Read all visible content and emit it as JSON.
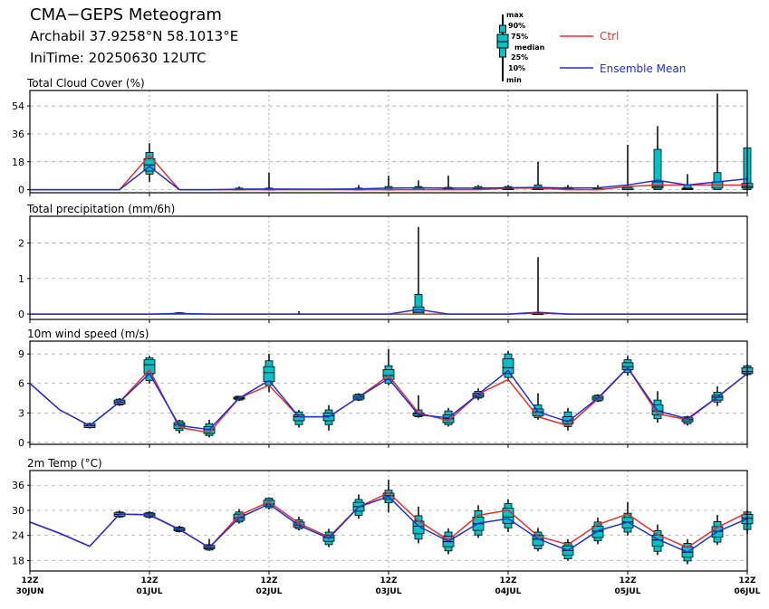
{
  "header": {
    "title": "CMA−GEPS Meteogram",
    "location": "Archabil 37.9258°N 58.1013°E",
    "init_time": "IniTime: 20250630 12UTC"
  },
  "legend": {
    "ctrl": "Ctrl",
    "mean": "Ensemble Mean",
    "box_max": "max",
    "box_90": "90%",
    "box_75": "75%",
    "box_median": "median",
    "box_25": "25%",
    "box_10": "10%",
    "box_min": "min"
  },
  "colors": {
    "ctrl": "#e03030",
    "mean": "#2030d0",
    "box_fill": "#00c0c8",
    "grid": "#999999"
  },
  "x_axis": {
    "ticks": [
      {
        "t": 0,
        "top": "12Z",
        "bottom": "30JUN"
      },
      {
        "t": 24,
        "top": "12Z",
        "bottom": "01JUL"
      },
      {
        "t": 48,
        "top": "12Z",
        "bottom": "02JUL"
      },
      {
        "t": 72,
        "top": "12Z",
        "bottom": "03JUL"
      },
      {
        "t": 96,
        "top": "12Z",
        "bottom": "04JUL"
      },
      {
        "t": 120,
        "top": "12Z",
        "bottom": "05JUL"
      },
      {
        "t": 144,
        "top": "12Z",
        "bottom": "06JUL"
      }
    ]
  },
  "chart_data": [
    {
      "type": "box",
      "title": "Total Cloud Cover (%)",
      "ylim": [
        -2,
        64
      ],
      "yticks": [
        0,
        18,
        36,
        54
      ],
      "lead_hours": [
        0,
        6,
        12,
        18,
        24,
        30,
        36,
        42,
        48,
        54,
        60,
        66,
        72,
        78,
        84,
        90,
        96,
        102,
        108,
        114,
        120,
        126,
        132,
        138,
        144
      ],
      "ctrl": [
        0,
        0,
        0,
        0,
        22,
        0,
        0,
        0,
        0,
        0,
        0,
        0,
        0,
        0,
        0,
        0,
        1,
        1,
        0,
        0,
        2,
        3,
        3,
        3,
        3
      ],
      "mean": [
        0,
        0,
        0,
        0,
        15,
        0,
        0,
        0.3,
        0.4,
        0.3,
        0.3,
        0.5,
        1,
        1.2,
        1,
        1,
        1.2,
        1.4,
        1,
        1.2,
        3,
        6,
        3,
        5,
        7
      ],
      "boxes": [
        null,
        null,
        null,
        null,
        [
          5,
          10,
          12,
          16,
          20,
          24,
          30
        ],
        null,
        null,
        [
          0,
          0,
          0,
          0,
          0,
          1,
          2
        ],
        [
          0,
          0,
          0,
          0,
          0,
          1,
          11
        ],
        null,
        null,
        [
          0,
          0,
          0,
          0,
          0,
          1,
          3
        ],
        [
          0,
          0,
          0,
          0,
          0,
          2,
          9
        ],
        [
          0,
          0,
          0,
          0,
          1,
          2,
          6
        ],
        [
          0,
          0,
          0,
          0,
          0.5,
          1.5,
          9
        ],
        [
          0,
          0,
          0,
          0.5,
          1,
          2,
          3
        ],
        [
          0,
          0,
          0,
          0.5,
          1,
          2,
          3
        ],
        [
          0,
          0,
          0,
          0.5,
          1,
          3,
          18
        ],
        [
          0,
          0,
          0,
          0,
          0.5,
          1.5,
          3
        ],
        [
          0,
          0,
          0,
          0,
          0.5,
          1,
          3
        ],
        [
          0,
          0,
          0,
          0,
          1,
          2,
          29
        ],
        [
          0,
          0,
          1,
          2,
          5,
          26,
          41
        ],
        [
          0,
          0,
          0,
          0.5,
          1,
          3,
          10
        ],
        [
          0,
          0,
          1,
          3,
          5,
          11,
          62
        ],
        [
          0,
          0,
          1,
          2,
          4,
          27,
          27
        ]
      ]
    },
    {
      "type": "box",
      "title": "Total precipitation (mm/6h)",
      "ylim": [
        -0.15,
        2.75
      ],
      "yticks": [
        0,
        1,
        2
      ],
      "lead_hours": [
        0,
        6,
        12,
        18,
        24,
        30,
        36,
        42,
        48,
        54,
        60,
        66,
        72,
        78,
        84,
        90,
        96,
        102,
        108,
        114,
        120,
        126,
        132,
        138,
        144
      ],
      "ctrl": [
        0,
        0,
        0,
        0,
        0,
        0,
        0,
        0,
        0,
        0,
        0,
        0,
        0,
        0,
        0,
        0,
        0,
        0.03,
        0,
        0,
        0,
        0,
        0,
        0,
        0
      ],
      "mean": [
        0,
        0,
        0,
        0,
        0,
        0.02,
        0,
        0,
        0,
        0,
        0,
        0,
        0,
        0.13,
        0,
        0,
        0,
        0.05,
        0,
        0,
        0,
        0,
        0,
        0,
        0
      ],
      "boxes": [
        null,
        null,
        null,
        null,
        null,
        [
          0,
          0,
          0,
          0.02,
          0.03,
          0.04,
          0.05
        ],
        null,
        null,
        null,
        [
          0,
          0,
          0,
          0,
          0,
          0,
          0.08
        ],
        null,
        null,
        null,
        [
          0,
          0,
          0,
          0.05,
          0.2,
          0.55,
          2.45
        ],
        null,
        null,
        null,
        [
          0,
          0,
          0,
          0,
          0,
          0.02,
          1.6
        ],
        null,
        null,
        null,
        null,
        null,
        null,
        null
      ]
    },
    {
      "type": "box",
      "title": "10m wind speed (m/s)",
      "ylim": [
        -0.2,
        10.3
      ],
      "yticks": [
        0,
        3,
        6,
        9
      ],
      "lead_hours": [
        0,
        6,
        12,
        18,
        24,
        30,
        36,
        42,
        48,
        54,
        60,
        66,
        72,
        78,
        84,
        90,
        96,
        102,
        108,
        114,
        120,
        126,
        132,
        138,
        144
      ],
      "ctrl": [
        6.0,
        3.3,
        1.7,
        4.1,
        7.4,
        1.5,
        1.0,
        4.5,
        5.8,
        2.6,
        2.6,
        4.6,
        6.8,
        3.0,
        2.2,
        4.9,
        6.4,
        2.6,
        1.7,
        4.4,
        7.6,
        2.9,
        2.3,
        4.6,
        7.0
      ],
      "mean": [
        6.0,
        3.3,
        1.7,
        4.1,
        7.0,
        1.7,
        1.3,
        4.5,
        6.3,
        2.6,
        2.6,
        4.6,
        6.5,
        2.8,
        2.5,
        4.9,
        7.3,
        3.1,
        2.1,
        4.5,
        7.6,
        3.2,
        2.4,
        4.6,
        7.0
      ],
      "boxes": [
        null,
        null,
        [
          1.4,
          1.5,
          1.5,
          1.7,
          1.9,
          1.9,
          2.0
        ],
        [
          3.7,
          3.8,
          3.9,
          4.1,
          4.3,
          4.4,
          4.5
        ],
        [
          6.0,
          6.3,
          7.0,
          7.9,
          8.4,
          8.6,
          8.8
        ],
        [
          0.9,
          1.2,
          1.4,
          1.8,
          2.0,
          2.2,
          2.3
        ],
        [
          0.5,
          0.7,
          0.9,
          1.3,
          1.6,
          1.9,
          2.3
        ],
        [
          4.2,
          4.3,
          4.4,
          4.5,
          4.6,
          4.7,
          4.7
        ],
        [
          5.1,
          5.8,
          6.2,
          7.1,
          7.7,
          8.3,
          9.0
        ],
        [
          1.5,
          1.8,
          2.2,
          2.6,
          2.8,
          3.1,
          3.3
        ],
        [
          1.2,
          1.8,
          2.2,
          2.7,
          3.0,
          3.3,
          3.8
        ],
        [
          4.2,
          4.3,
          4.4,
          4.6,
          4.8,
          4.9,
          5.0
        ],
        [
          5.8,
          6.0,
          6.4,
          6.8,
          7.4,
          7.8,
          9.5
        ],
        [
          2.5,
          2.6,
          2.7,
          2.9,
          3.0,
          3.3,
          4.8
        ],
        [
          1.6,
          1.8,
          2.0,
          2.4,
          2.8,
          3.2,
          3.5
        ],
        [
          4.3,
          4.5,
          4.6,
          4.8,
          5.0,
          5.2,
          5.5
        ],
        [
          6.2,
          6.6,
          7.0,
          7.6,
          8.5,
          9.0,
          9.3
        ],
        [
          2.3,
          2.5,
          2.7,
          3.1,
          3.4,
          3.8,
          5.0
        ],
        [
          1.2,
          1.6,
          1.9,
          2.2,
          2.6,
          3.1,
          3.5
        ],
        [
          4.1,
          4.2,
          4.3,
          4.5,
          4.7,
          4.8,
          4.9
        ],
        [
          6.8,
          7.1,
          7.4,
          7.7,
          8.1,
          8.4,
          8.8
        ],
        [
          2.0,
          2.4,
          2.8,
          3.2,
          3.8,
          4.3,
          5.2
        ],
        [
          1.7,
          1.9,
          2.1,
          2.3,
          2.5,
          2.6,
          2.7
        ],
        [
          3.7,
          4.1,
          4.3,
          4.6,
          4.8,
          5.1,
          5.7
        ],
        [
          6.7,
          6.9,
          7.0,
          7.2,
          7.6,
          7.8,
          7.9
        ]
      ]
    },
    {
      "type": "box",
      "title": "2m Temp (°C)",
      "ylim": [
        15.5,
        39.5
      ],
      "yticks": [
        18,
        24,
        30,
        36
      ],
      "lead_hours": [
        0,
        6,
        12,
        18,
        24,
        30,
        36,
        42,
        48,
        54,
        60,
        66,
        72,
        78,
        84,
        90,
        96,
        102,
        108,
        114,
        120,
        126,
        132,
        138,
        144
      ],
      "ctrl": [
        27.2,
        24.5,
        21.4,
        29.1,
        29.0,
        25.5,
        21.1,
        28.8,
        32.0,
        26.9,
        23.6,
        30.8,
        34.2,
        27.5,
        22.9,
        28.8,
        30.0,
        23.8,
        21.8,
        26.6,
        29.1,
        24.2,
        21.1,
        25.9,
        29.5
      ],
      "mean": [
        27.2,
        24.5,
        21.4,
        29.1,
        28.9,
        25.4,
        21.1,
        28.2,
        31.5,
        26.4,
        23.3,
        30.8,
        33.3,
        26.2,
        22.6,
        26.9,
        28.0,
        23.2,
        20.4,
        25.1,
        27.2,
        23.1,
        20.0,
        24.9,
        28.0
      ],
      "boxes": [
        null,
        null,
        null,
        [
          28.2,
          28.4,
          28.6,
          29.0,
          29.4,
          29.6,
          29.9
        ],
        [
          28.0,
          28.3,
          28.5,
          28.9,
          29.3,
          29.5,
          29.8
        ],
        [
          24.7,
          24.9,
          25.1,
          25.4,
          25.8,
          26.0,
          26.3
        ],
        [
          20.3,
          20.5,
          20.8,
          21.1,
          21.6,
          21.8,
          23.2
        ],
        [
          26.8,
          27.2,
          27.6,
          28.2,
          29.1,
          29.6,
          30.3
        ],
        [
          30.2,
          30.6,
          31.0,
          31.5,
          32.4,
          32.9,
          33.1
        ],
        [
          25.2,
          25.6,
          26.0,
          26.5,
          27.2,
          27.7,
          28.5
        ],
        [
          21.2,
          21.8,
          22.6,
          23.5,
          24.1,
          24.8,
          25.6
        ],
        [
          28.0,
          28.8,
          29.8,
          30.9,
          31.9,
          32.6,
          33.8
        ],
        [
          29.5,
          31.8,
          32.6,
          33.5,
          34.1,
          34.8,
          37.3
        ],
        [
          22.1,
          23.1,
          24.4,
          26.2,
          27.4,
          28.7,
          30.9
        ],
        [
          19.5,
          20.3,
          21.3,
          22.5,
          23.8,
          24.8,
          25.7
        ],
        [
          23.4,
          24.1,
          25.2,
          26.8,
          28.4,
          29.9,
          31.2
        ],
        [
          24.8,
          25.8,
          26.9,
          28.4,
          30.5,
          31.6,
          32.6
        ],
        [
          20.2,
          20.8,
          21.6,
          23.1,
          24.1,
          24.8,
          25.8
        ],
        [
          18.0,
          18.4,
          19.3,
          20.4,
          21.5,
          22.3,
          23.1
        ],
        [
          21.9,
          22.7,
          23.5,
          25.0,
          26.2,
          27.2,
          28.3
        ],
        [
          24.0,
          24.8,
          25.8,
          27.2,
          28.3,
          29.3,
          32.0
        ],
        [
          19.3,
          20.2,
          21.4,
          22.9,
          24.1,
          25.1,
          26.6
        ],
        [
          17.1,
          17.9,
          18.8,
          20.0,
          21.3,
          22.1,
          23.1
        ],
        [
          21.7,
          22.4,
          23.6,
          25.0,
          26.1,
          27.3,
          28.9
        ],
        [
          24.4,
          25.4,
          26.8,
          28.1,
          29.0,
          29.6,
          30.0
        ]
      ]
    }
  ]
}
